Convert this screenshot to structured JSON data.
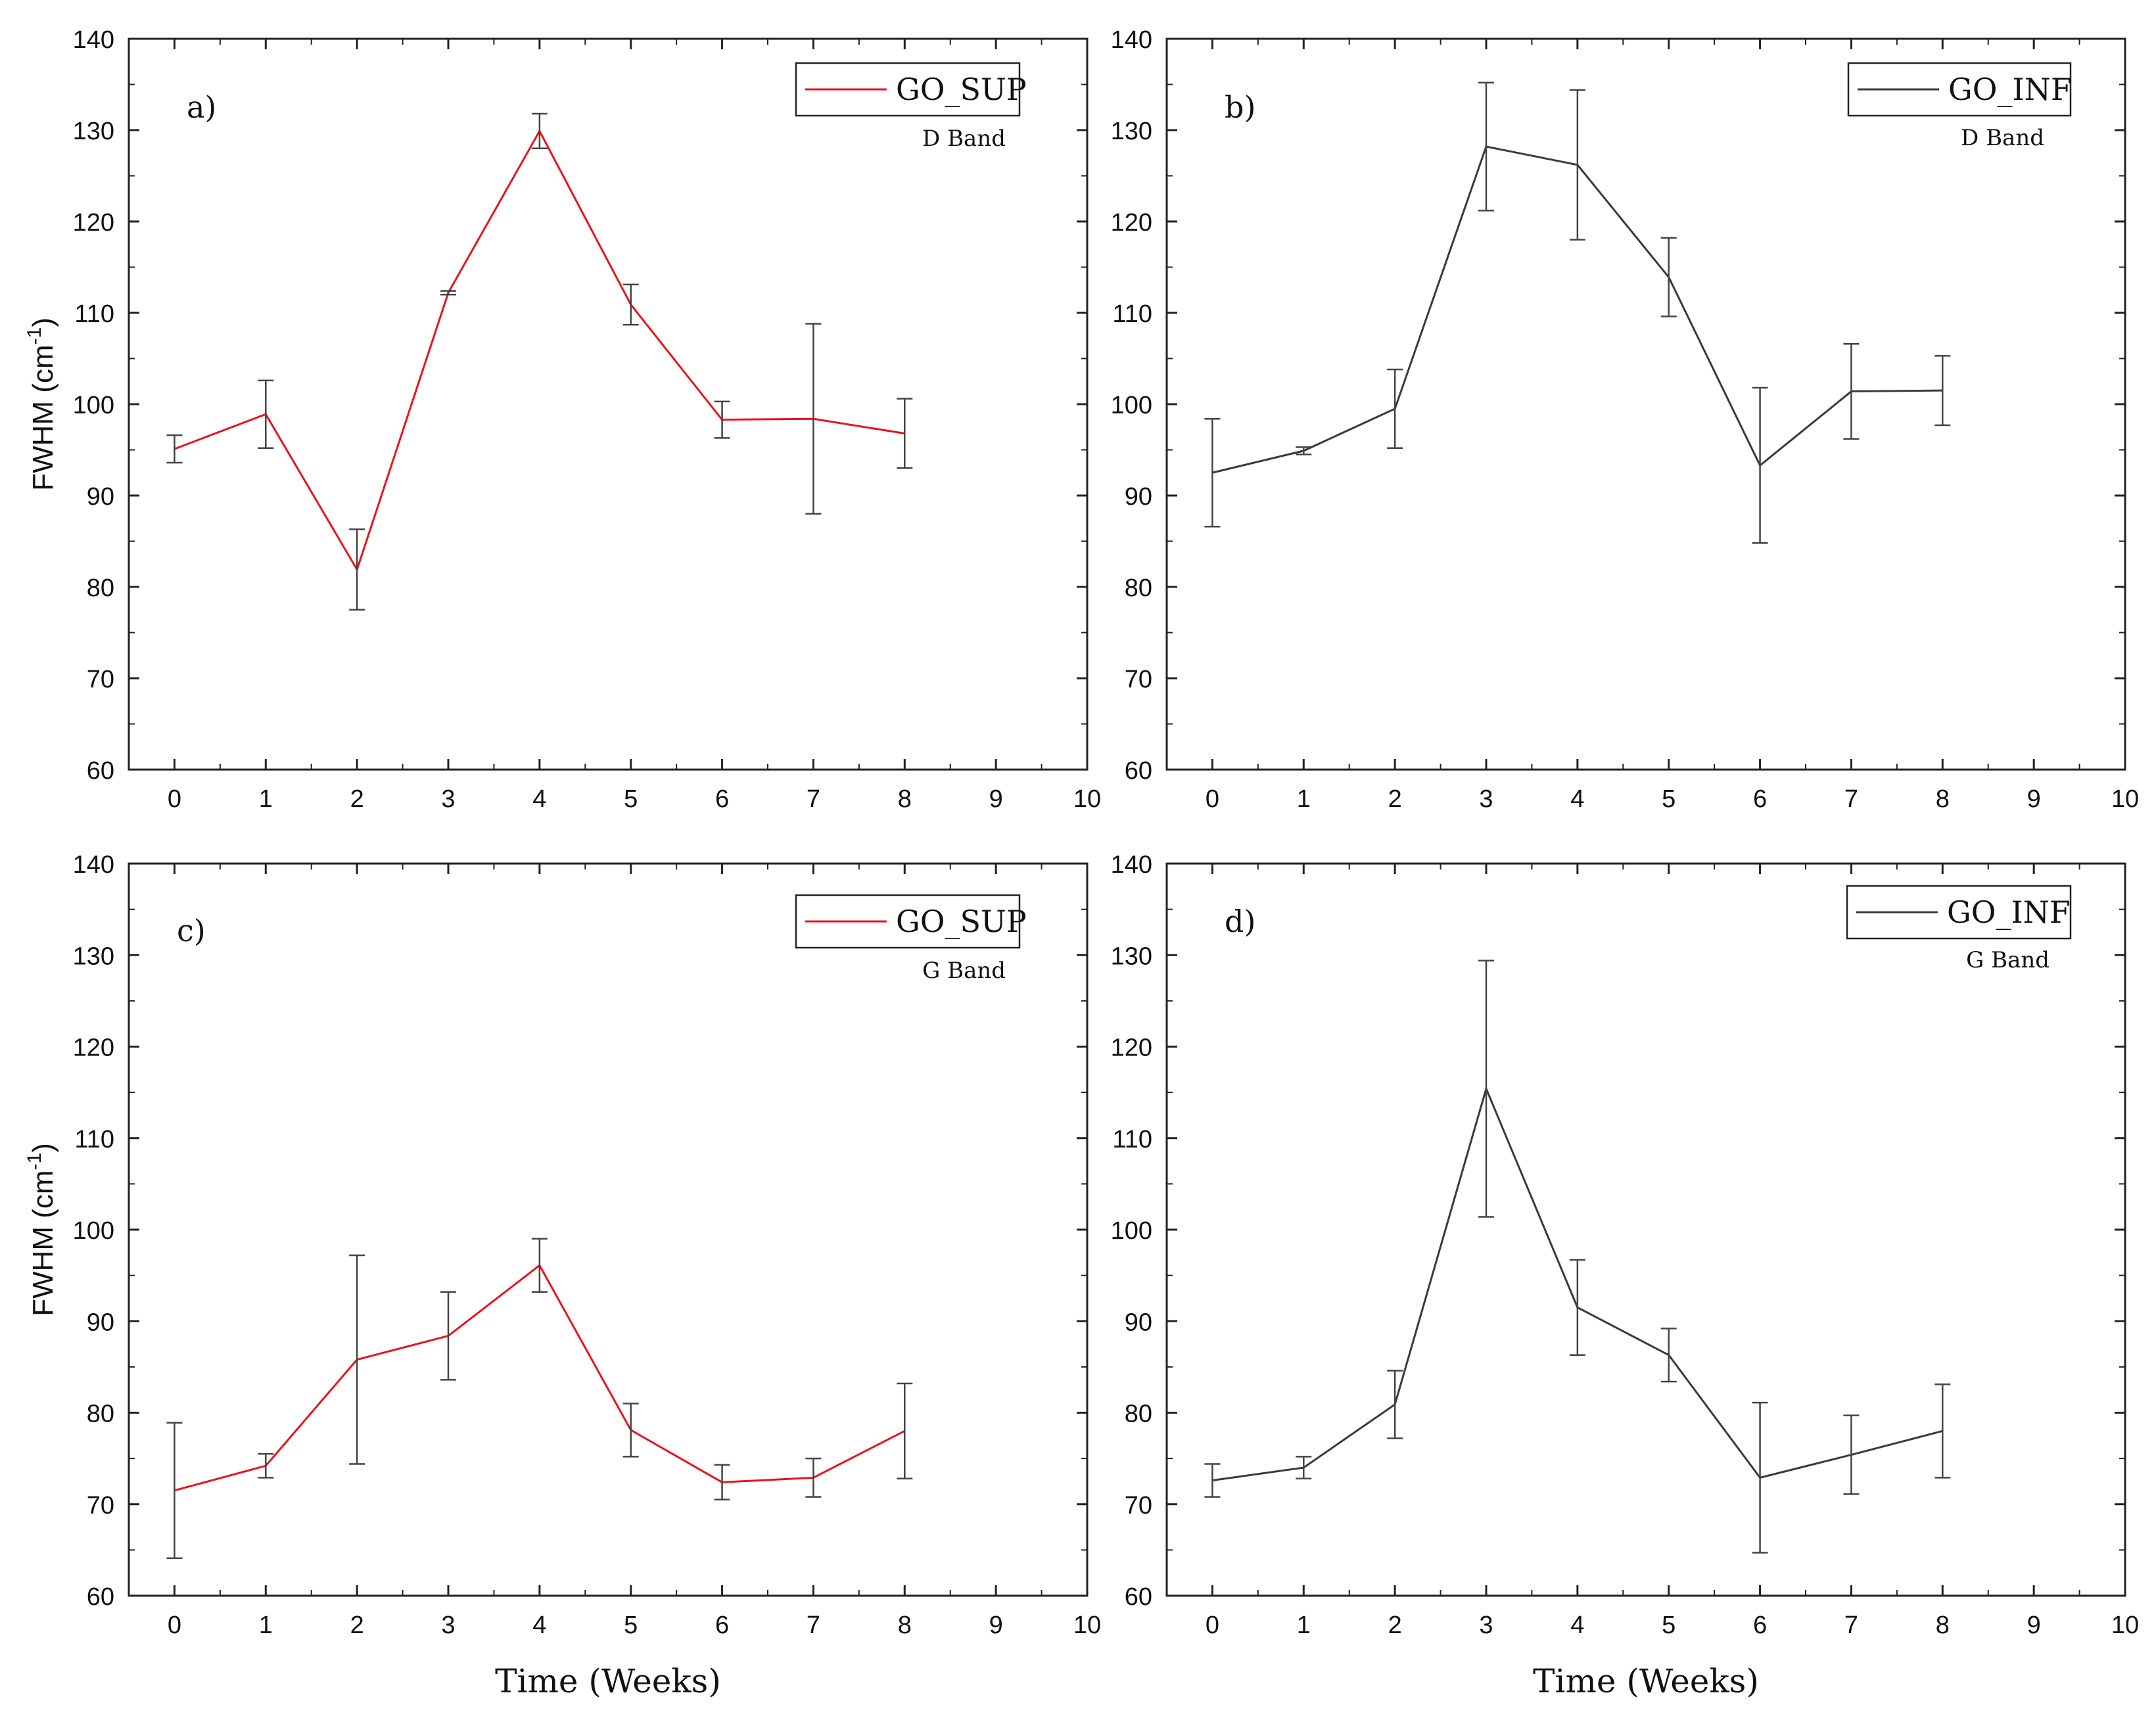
{
  "figure": {
    "x_title": "Time (Weeks)",
    "y_title_base": "FWHM (cm",
    "y_title_sup": "-1",
    "y_title_close": ")"
  },
  "chart_data": [
    {
      "type": "line",
      "panel_label": "a)",
      "band_label": "D Band",
      "legend": "GO_SUP",
      "color": "#e8141c",
      "xlim": [
        -0.5,
        10
      ],
      "ylim": [
        60,
        140
      ],
      "xticks": [
        "0",
        "1",
        "2",
        "3",
        "4",
        "5",
        "6",
        "7",
        "8",
        "9",
        "10"
      ],
      "yticks": [
        "60",
        "70",
        "80",
        "90",
        "100",
        "110",
        "120",
        "130",
        "140"
      ],
      "x": [
        0,
        1,
        2,
        3,
        4,
        5,
        6,
        7,
        8
      ],
      "y": [
        95.1,
        98.9,
        81.9,
        112.2,
        129.9,
        110.9,
        98.3,
        98.4,
        96.8
      ],
      "err": [
        1.5,
        3.7,
        4.4,
        0.2,
        1.9,
        2.2,
        2.0,
        10.4,
        3.8
      ],
      "ylabel": "FWHM (cm-1)",
      "xlabel": ""
    },
    {
      "type": "line",
      "panel_label": "b)",
      "band_label": "D Band",
      "legend": "GO_INF",
      "color": "#3a3a3a",
      "xlim": [
        -0.5,
        10
      ],
      "ylim": [
        60,
        140
      ],
      "xticks": [
        "0",
        "1",
        "2",
        "3",
        "4",
        "5",
        "6",
        "7",
        "8",
        "9",
        "10"
      ],
      "yticks": [
        "60",
        "70",
        "80",
        "90",
        "100",
        "110",
        "120",
        "130",
        "140"
      ],
      "x": [
        0,
        1,
        2,
        3,
        4,
        5,
        6,
        7,
        8
      ],
      "y": [
        92.5,
        94.9,
        99.5,
        128.2,
        126.2,
        113.9,
        93.3,
        101.4,
        101.5
      ],
      "err": [
        5.9,
        0.4,
        4.3,
        7.0,
        8.2,
        4.3,
        8.5,
        5.2,
        3.8
      ],
      "ylabel": "",
      "xlabel": ""
    },
    {
      "type": "line",
      "panel_label": "c)",
      "band_label": "G Band",
      "legend": "GO_SUP",
      "color": "#e8141c",
      "xlim": [
        -0.5,
        10
      ],
      "ylim": [
        60,
        140
      ],
      "xticks": [
        "0",
        "1",
        "2",
        "3",
        "4",
        "5",
        "6",
        "7",
        "8",
        "9",
        "10"
      ],
      "yticks": [
        "60",
        "70",
        "80",
        "90",
        "100",
        "110",
        "120",
        "130",
        "140"
      ],
      "x": [
        0,
        1,
        2,
        3,
        4,
        5,
        6,
        7,
        8
      ],
      "y": [
        71.5,
        74.2,
        85.8,
        88.4,
        96.1,
        78.1,
        72.4,
        72.9,
        78.0
      ],
      "err": [
        7.4,
        1.3,
        11.4,
        4.8,
        2.9,
        2.9,
        1.9,
        2.1,
        5.2
      ],
      "ylabel": "FWHM (cm-1)",
      "xlabel": "Time (Weeks)"
    },
    {
      "type": "line",
      "panel_label": "d)",
      "band_label": "G Band",
      "legend": "GO_INF",
      "color": "#3a3a3a",
      "xlim": [
        -0.5,
        10
      ],
      "ylim": [
        60,
        140
      ],
      "xticks": [
        "0",
        "1",
        "2",
        "3",
        "4",
        "5",
        "6",
        "7",
        "8",
        "9",
        "10"
      ],
      "yticks": [
        "60",
        "70",
        "80",
        "90",
        "100",
        "110",
        "120",
        "130",
        "140"
      ],
      "x": [
        0,
        1,
        2,
        3,
        4,
        5,
        6,
        7,
        8
      ],
      "y": [
        72.6,
        74.0,
        80.9,
        115.4,
        91.5,
        86.3,
        72.9,
        75.4,
        78.0
      ],
      "err": [
        1.8,
        1.2,
        3.7,
        14.0,
        5.2,
        2.9,
        8.2,
        4.3,
        5.1
      ],
      "ylabel": "",
      "xlabel": "Time (Weeks)"
    }
  ]
}
